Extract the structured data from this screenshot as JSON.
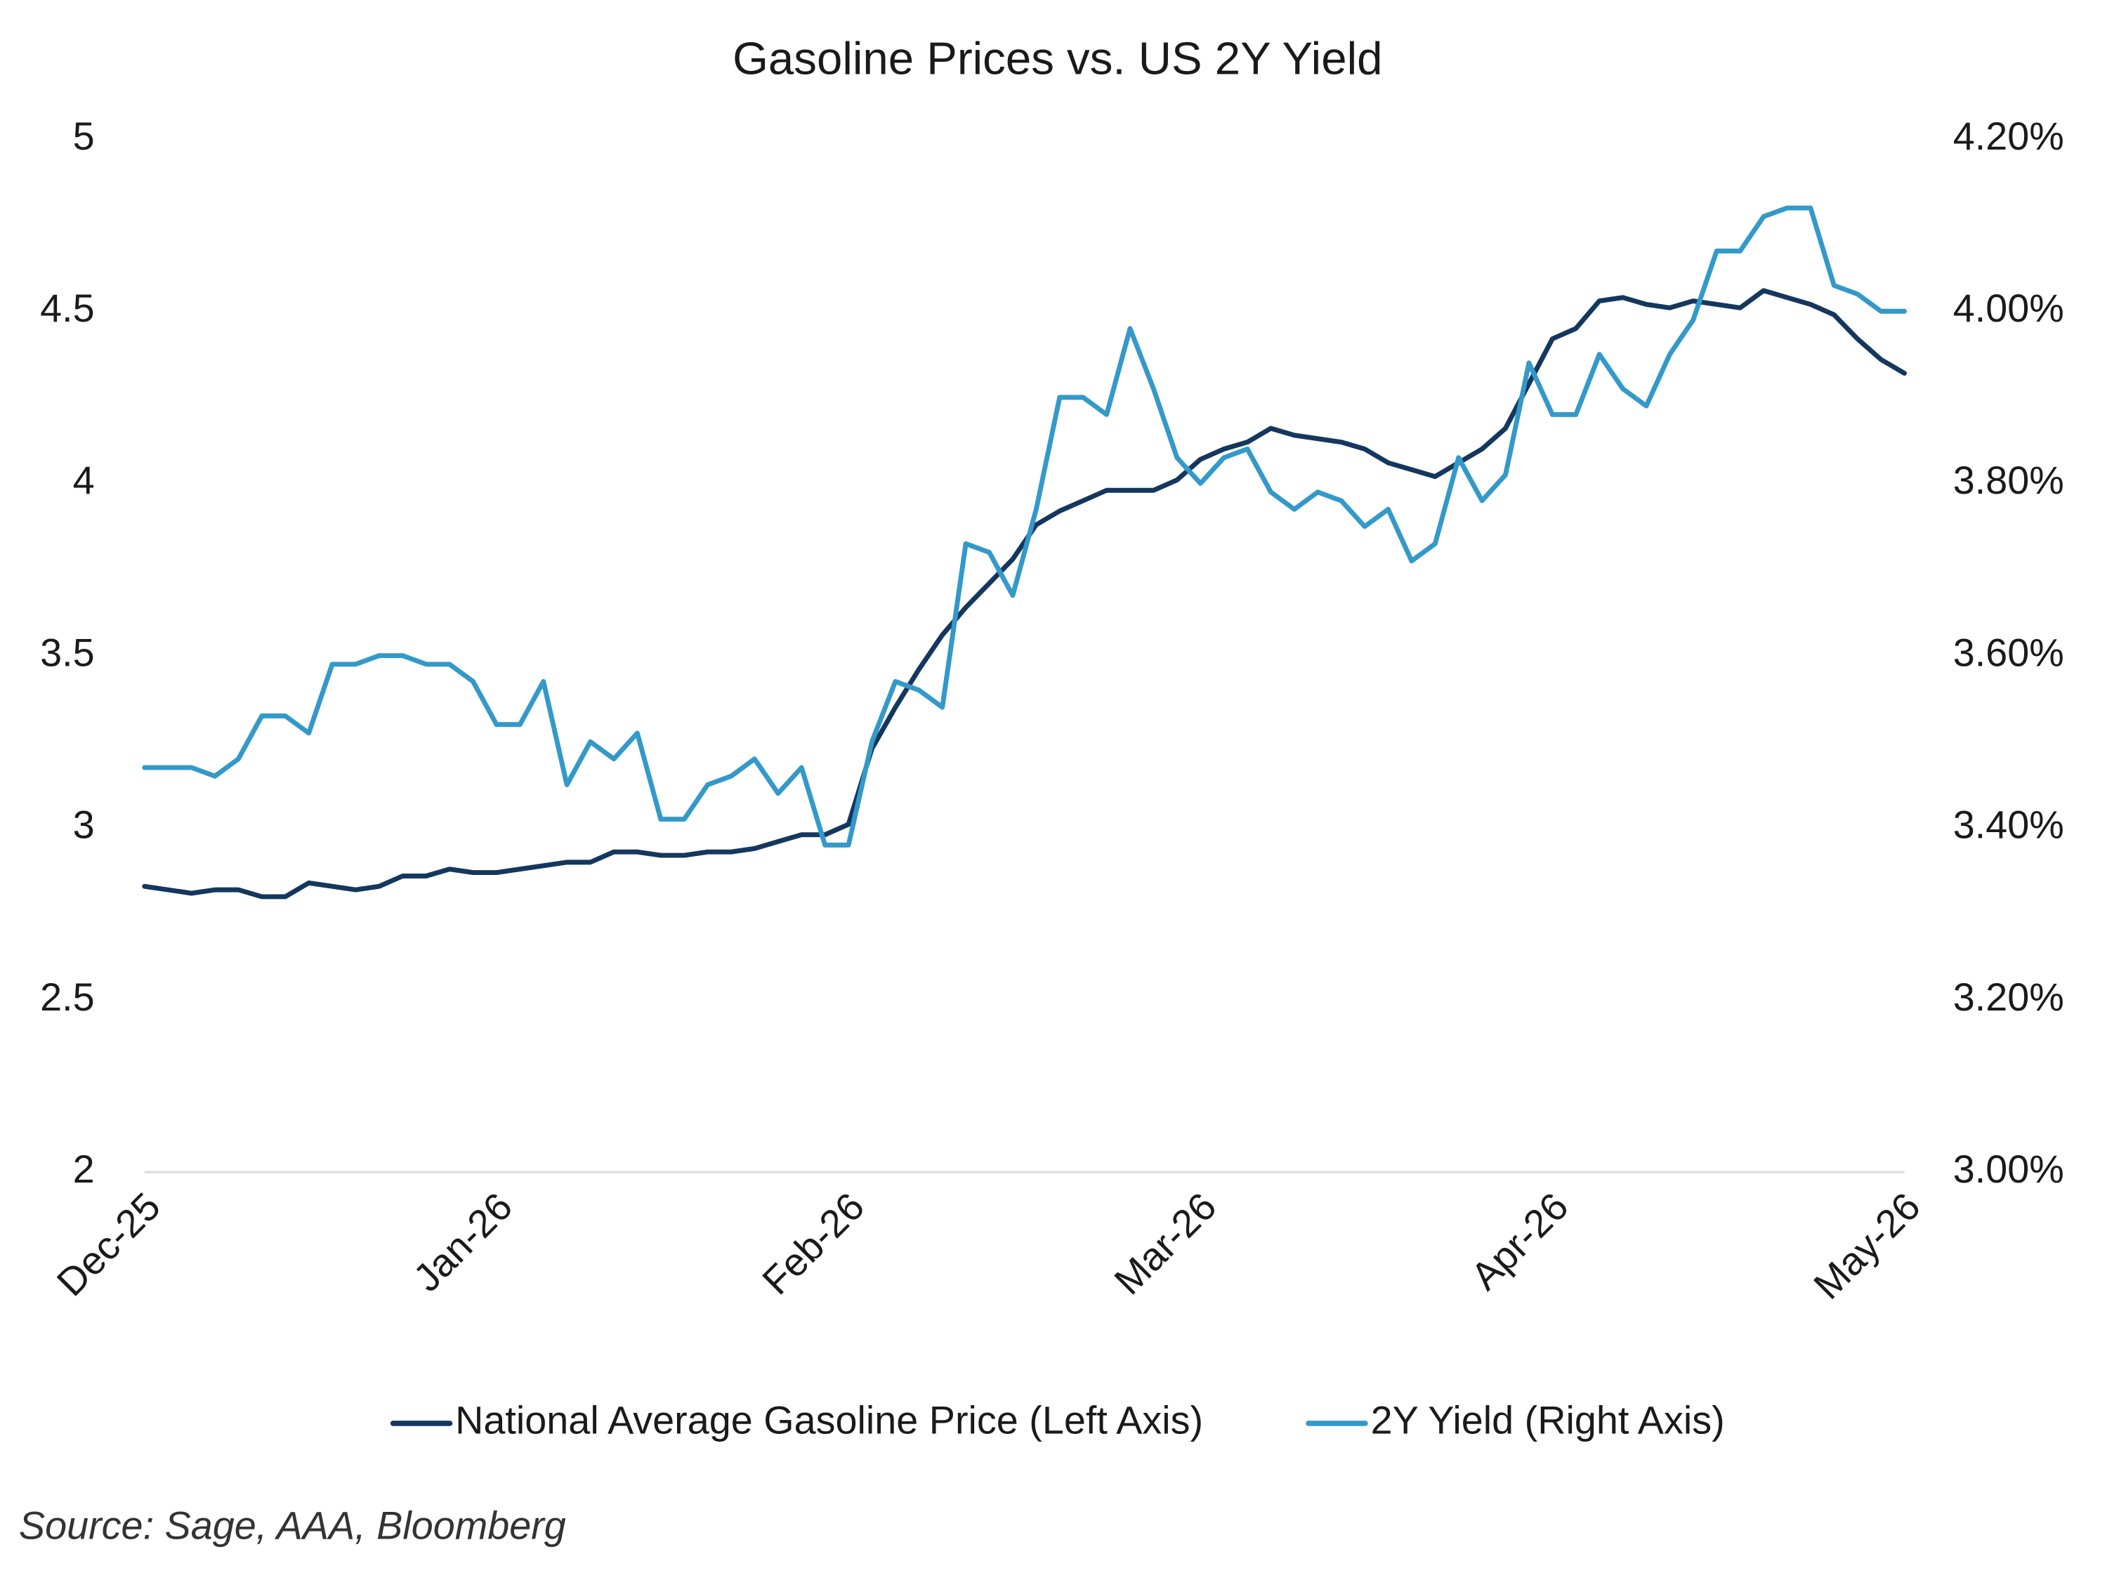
{
  "chart_data": {
    "type": "line",
    "title": "Gasoline Prices vs. US 2Y Yield",
    "source": "Source: Sage, AAA, Bloomberg",
    "categories": [
      "Dec-25",
      null,
      null,
      null,
      null,
      null,
      null,
      null,
      null,
      null,
      null,
      null,
      null,
      null,
      null,
      "Jan-26",
      null,
      null,
      null,
      null,
      null,
      null,
      null,
      null,
      null,
      null,
      null,
      null,
      null,
      null,
      "Feb-26",
      null,
      null,
      null,
      null,
      null,
      null,
      null,
      null,
      null,
      null,
      null,
      null,
      null,
      null,
      "Mar-26",
      null,
      null,
      null,
      null,
      null,
      null,
      null,
      null,
      null,
      null,
      null,
      null,
      null,
      null,
      "Apr-26",
      null,
      null,
      null,
      null,
      null,
      null,
      null,
      null,
      null,
      null,
      null,
      null,
      null,
      null,
      "May-26"
    ],
    "series": [
      {
        "name": "National Average Gasoline Price (Left Axis)",
        "color": "#14375e",
        "axis": "y",
        "values": [
          2.83,
          2.82,
          2.81,
          2.82,
          2.82,
          2.8,
          2.8,
          2.84,
          2.83,
          2.82,
          2.83,
          2.86,
          2.86,
          2.88,
          2.87,
          2.87,
          2.88,
          2.89,
          2.9,
          2.9,
          2.93,
          2.93,
          2.92,
          2.92,
          2.93,
          2.93,
          2.94,
          2.96,
          2.98,
          2.98,
          3.01,
          3.23,
          3.35,
          3.46,
          3.56,
          3.64,
          3.71,
          3.78,
          3.88,
          3.92,
          3.95,
          3.98,
          3.98,
          3.98,
          4.01,
          4.07,
          4.1,
          4.12,
          4.16,
          4.14,
          4.13,
          4.12,
          4.1,
          4.06,
          4.04,
          4.02,
          4.06,
          4.1,
          4.16,
          4.29,
          4.42,
          4.45,
          4.53,
          4.54,
          4.52,
          4.51,
          4.53,
          4.52,
          4.51,
          4.56,
          4.54,
          4.52,
          4.49,
          4.42,
          4.36,
          4.32
        ]
      },
      {
        "name": "2Y Yield (Right Axis)",
        "color": "#3399c9",
        "axis": "y2",
        "values": [
          3.47,
          3.47,
          3.47,
          3.46,
          3.48,
          3.53,
          3.53,
          3.51,
          3.59,
          3.59,
          3.6,
          3.6,
          3.59,
          3.59,
          3.57,
          3.52,
          3.52,
          3.57,
          3.45,
          3.5,
          3.48,
          3.51,
          3.41,
          3.41,
          3.45,
          3.46,
          3.48,
          3.44,
          3.47,
          3.38,
          3.38,
          3.5,
          3.57,
          3.56,
          3.54,
          3.73,
          3.72,
          3.67,
          3.77,
          3.9,
          3.9,
          3.88,
          3.98,
          3.91,
          3.83,
          3.8,
          3.83,
          3.84,
          3.79,
          3.77,
          3.79,
          3.78,
          3.75,
          3.77,
          3.71,
          3.73,
          3.83,
          3.78,
          3.81,
          3.94,
          3.88,
          3.88,
          3.95,
          3.91,
          3.89,
          3.95,
          3.99,
          4.07,
          4.07,
          4.11,
          4.12,
          4.12,
          4.03,
          4.02,
          4.0,
          4.0
        ]
      }
    ],
    "ylim": [
      2,
      5
    ],
    "yticks": [
      2,
      2.5,
      3,
      3.5,
      4,
      4.5,
      5
    ],
    "y2lim": [
      3.0,
      4.2
    ],
    "y2ticks": [
      {
        "value": 3.0,
        "label": "3.00%"
      },
      {
        "value": 3.2,
        "label": "3.20%"
      },
      {
        "value": 3.4,
        "label": "3.40%"
      },
      {
        "value": 3.6,
        "label": "3.60%"
      },
      {
        "value": 3.8,
        "label": "3.80%"
      },
      {
        "value": 4.0,
        "label": "4.00%"
      },
      {
        "value": 4.2,
        "label": "4.20%"
      }
    ],
    "grid": false,
    "legend": "bottom"
  }
}
